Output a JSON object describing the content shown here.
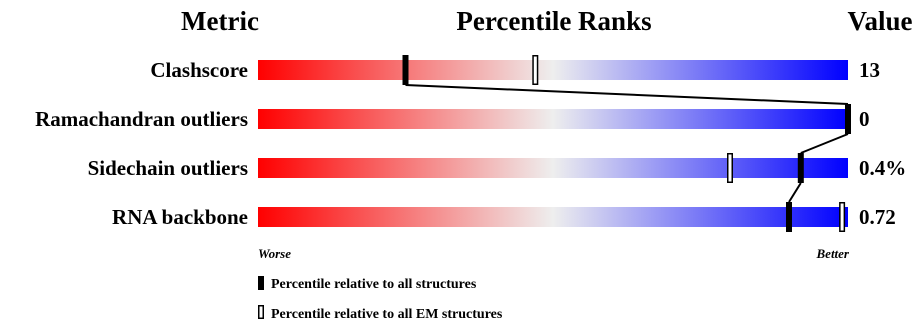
{
  "chart_data": {
    "type": "percentile-slider",
    "headers": {
      "metric": "Metric",
      "ranks": "Percentile Ranks",
      "value": "Value"
    },
    "rows": [
      {
        "metric": "Clashscore",
        "value": "13",
        "pct_all": 25,
        "pct_em": 47
      },
      {
        "metric": "Ramachandran outliers",
        "value": "0",
        "pct_all": 100,
        "pct_em": 100
      },
      {
        "metric": "Sidechain outliers",
        "value": "0.4%",
        "pct_all": 92,
        "pct_em": 80
      },
      {
        "metric": "RNA backbone",
        "value": "0.72",
        "pct_all": 90,
        "pct_em": 99
      }
    ],
    "axis": {
      "left": "Worse",
      "right": "Better",
      "range": [
        0,
        100
      ]
    },
    "legend": [
      {
        "marker": "filled",
        "text": "Percentile relative to all structures"
      },
      {
        "marker": "open",
        "text": "Percentile relative to all EM structures"
      }
    ],
    "colors": {
      "worse": "#ff0000",
      "middle": "#eeeeee",
      "better": "#0000ff",
      "marker": "#000000"
    }
  }
}
